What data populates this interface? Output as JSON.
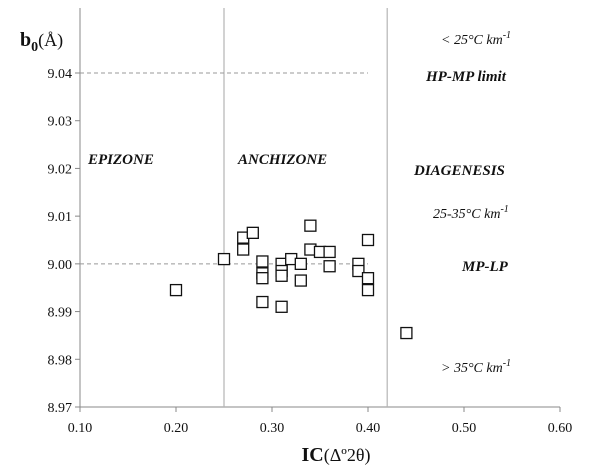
{
  "chart_data": {
    "type": "scatter",
    "title": "",
    "xlabel_main": "IC",
    "xlabel_paren": "(Δº2θ)",
    "ylabel_main": "b",
    "ylabel_sub": "0",
    "ylabel_paren": "(Å)",
    "xlim": [
      0.1,
      0.6
    ],
    "ylim": [
      8.97,
      9.045
    ],
    "xticks": [
      "0.10",
      "0.20",
      "0.30",
      "0.40",
      "0.50",
      "0.60"
    ],
    "xtick_values": [
      0.1,
      0.2,
      0.3,
      0.4,
      0.5,
      0.6
    ],
    "yticks": [
      "8.97",
      "8.98",
      "8.99",
      "9.00",
      "9.01",
      "9.02",
      "9.03",
      "9.04"
    ],
    "ytick_values": [
      8.97,
      8.98,
      8.99,
      9.0,
      9.01,
      9.02,
      9.03,
      9.04
    ],
    "grid": false,
    "marker": "open-square",
    "points": [
      {
        "x": 0.2,
        "y": 8.9945
      },
      {
        "x": 0.25,
        "y": 9.001
      },
      {
        "x": 0.27,
        "y": 9.0055
      },
      {
        "x": 0.27,
        "y": 9.003
      },
      {
        "x": 0.28,
        "y": 9.0065
      },
      {
        "x": 0.29,
        "y": 9.0005
      },
      {
        "x": 0.29,
        "y": 8.998
      },
      {
        "x": 0.29,
        "y": 8.997
      },
      {
        "x": 0.29,
        "y": 8.992
      },
      {
        "x": 0.31,
        "y": 9.0
      },
      {
        "x": 0.31,
        "y": 8.9985
      },
      {
        "x": 0.31,
        "y": 8.9975
      },
      {
        "x": 0.31,
        "y": 8.991
      },
      {
        "x": 0.32,
        "y": 9.001
      },
      {
        "x": 0.33,
        "y": 9.0
      },
      {
        "x": 0.33,
        "y": 8.9965
      },
      {
        "x": 0.34,
        "y": 9.008
      },
      {
        "x": 0.34,
        "y": 9.003
      },
      {
        "x": 0.35,
        "y": 9.0025
      },
      {
        "x": 0.36,
        "y": 9.0025
      },
      {
        "x": 0.36,
        "y": 8.9995
      },
      {
        "x": 0.39,
        "y": 9.0
      },
      {
        "x": 0.39,
        "y": 8.9985
      },
      {
        "x": 0.4,
        "y": 9.005
      },
      {
        "x": 0.4,
        "y": 8.997
      },
      {
        "x": 0.4,
        "y": 8.9945
      },
      {
        "x": 0.44,
        "y": 8.9855
      }
    ],
    "vertical_lines": [
      {
        "x": 0.25,
        "color": "#b5b5b5"
      },
      {
        "x": 0.42,
        "color": "#b5b5b5"
      }
    ],
    "horizontal_lines": [
      {
        "y": 9.04,
        "style": "dashed",
        "color": "#999999",
        "x_to": 0.4
      },
      {
        "y": 9.0,
        "style": "dashed",
        "color": "#999999",
        "x_to": 0.4
      }
    ],
    "zone_labels": [
      "EPIZONE",
      "ANCHIZONE",
      "DIAGENESIS"
    ],
    "gradient_labels": {
      "top": {
        "pre": "< 25°C km",
        "sup": "-1"
      },
      "mid": {
        "pre": "25-35°C km",
        "sup": "-1"
      },
      "bottom": {
        "pre": "> 35°C km",
        "sup": "-1"
      }
    },
    "limit_labels": [
      "HP-MP limit",
      "MP-LP"
    ]
  }
}
